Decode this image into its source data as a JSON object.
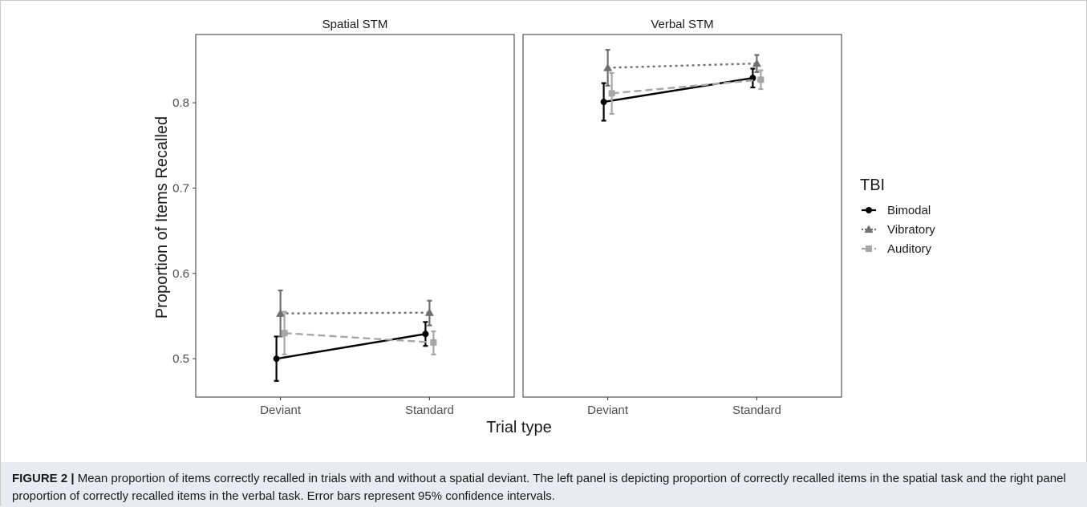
{
  "caption": {
    "label": "FIGURE 2 |",
    "text": " Mean proportion of items correctly recalled in trials with and without a spatial deviant. The left panel is depicting proportion of correctly recalled items in the spatial task and the right panel proportion of correctly recalled items in the verbal task. Error bars represent 95% confidence intervals."
  },
  "chart_data": {
    "type": "line",
    "xlabel": "Trial type",
    "ylabel": "Proportion of Items Recalled",
    "categories": [
      "Deviant",
      "Standard"
    ],
    "ylim": [
      0.455,
      0.88
    ],
    "yticks": [
      0.5,
      0.6,
      0.7,
      0.8
    ],
    "grid": false,
    "legend": {
      "title": "TBI",
      "position": "right",
      "entries": [
        {
          "name": "Bimodal",
          "color": "#000000",
          "shape": "circle",
          "dash": "solid"
        },
        {
          "name": "Vibratory",
          "color": "#6e6e6e",
          "shape": "triangle",
          "dash": "dotted"
        },
        {
          "name": "Auditory",
          "color": "#a6a6a6",
          "shape": "square",
          "dash": "dashed"
        }
      ]
    },
    "panels": [
      {
        "title": "Spatial STM",
        "series": [
          {
            "name": "Bimodal",
            "values": [
              0.5,
              0.529
            ],
            "ci_low": [
              0.474,
              0.515
            ],
            "ci_high": [
              0.526,
              0.543
            ]
          },
          {
            "name": "Vibratory",
            "values": [
              0.553,
              0.554
            ],
            "ci_low": [
              0.526,
              0.539
            ],
            "ci_high": [
              0.58,
              0.568
            ]
          },
          {
            "name": "Auditory",
            "values": [
              0.53,
              0.519
            ],
            "ci_low": [
              0.505,
              0.505
            ],
            "ci_high": [
              0.555,
              0.532
            ]
          }
        ]
      },
      {
        "title": "Verbal STM",
        "series": [
          {
            "name": "Bimodal",
            "values": [
              0.801,
              0.829
            ],
            "ci_low": [
              0.779,
              0.818
            ],
            "ci_high": [
              0.823,
              0.84
            ]
          },
          {
            "name": "Vibratory",
            "values": [
              0.841,
              0.846
            ],
            "ci_low": [
              0.82,
              0.836
            ],
            "ci_high": [
              0.862,
              0.856
            ]
          },
          {
            "name": "Auditory",
            "values": [
              0.811,
              0.827
            ],
            "ci_low": [
              0.787,
              0.816
            ],
            "ci_high": [
              0.835,
              0.838
            ]
          }
        ]
      }
    ]
  }
}
